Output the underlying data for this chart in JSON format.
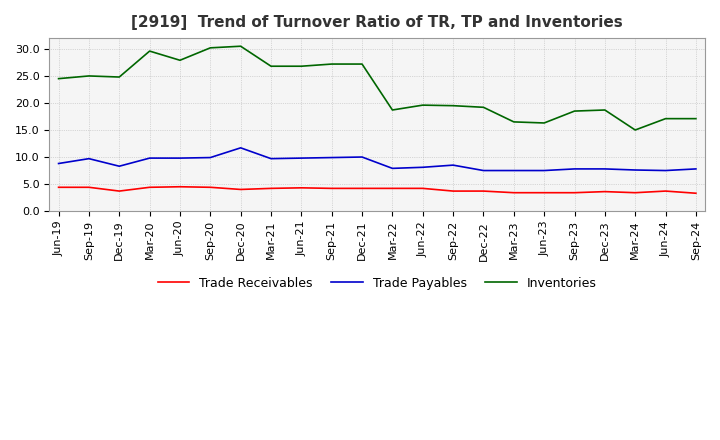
{
  "title": "[2919]  Trend of Turnover Ratio of TR, TP and Inventories",
  "ylim": [
    0,
    32
  ],
  "yticks": [
    0.0,
    5.0,
    10.0,
    15.0,
    20.0,
    25.0,
    30.0
  ],
  "ytick_labels": [
    "0.0",
    "5.0",
    "10.0",
    "15.0",
    "20.0",
    "25.0",
    "30.0"
  ],
  "x_labels": [
    "Jun-19",
    "Sep-19",
    "Dec-19",
    "Mar-20",
    "Jun-20",
    "Sep-20",
    "Dec-20",
    "Mar-21",
    "Jun-21",
    "Sep-21",
    "Dec-21",
    "Mar-22",
    "Jun-22",
    "Sep-22",
    "Dec-22",
    "Mar-23",
    "Jun-23",
    "Sep-23",
    "Dec-23",
    "Mar-24",
    "Jun-24",
    "Sep-24"
  ],
  "trade_receivables": [
    4.4,
    4.4,
    3.7,
    4.4,
    4.5,
    4.4,
    4.0,
    4.2,
    4.3,
    4.2,
    4.2,
    4.2,
    4.2,
    3.7,
    3.7,
    3.4,
    3.4,
    3.4,
    3.6,
    3.4,
    3.7,
    3.3
  ],
  "trade_payables": [
    8.8,
    9.7,
    8.3,
    9.8,
    9.8,
    9.9,
    11.7,
    9.7,
    9.8,
    9.9,
    10.0,
    7.9,
    8.1,
    8.5,
    7.5,
    7.5,
    7.5,
    7.8,
    7.8,
    7.6,
    7.5,
    7.8
  ],
  "inventories": [
    24.5,
    25.0,
    24.8,
    29.6,
    27.9,
    30.2,
    30.5,
    26.8,
    26.8,
    27.2,
    27.2,
    18.7,
    19.6,
    19.5,
    19.2,
    16.5,
    16.3,
    18.5,
    18.7,
    15.0,
    17.1,
    17.1
  ],
  "color_tr": "#ff0000",
  "color_tp": "#0000cc",
  "color_inv": "#006600",
  "legend_labels": [
    "Trade Receivables",
    "Trade Payables",
    "Inventories"
  ],
  "title_fontsize": 11,
  "tick_fontsize": 8,
  "legend_fontsize": 9,
  "background_color": "#ffffff",
  "plot_bg_color": "#f5f5f5",
  "grid_color": "#aaaaaa",
  "grid_style": ":"
}
